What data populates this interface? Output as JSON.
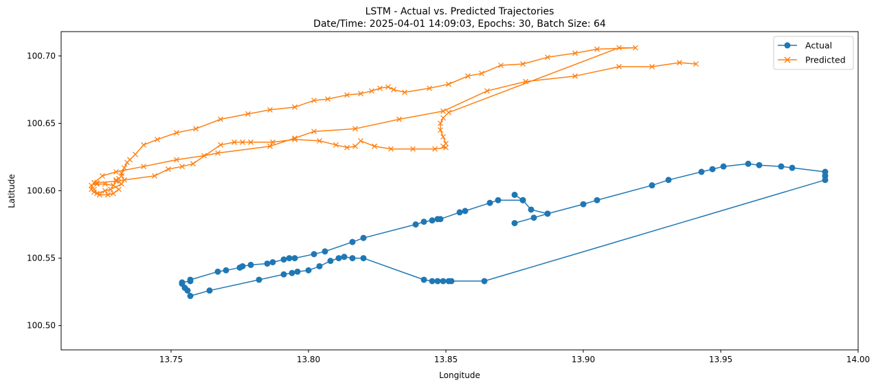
{
  "chart_data": {
    "type": "line",
    "title": "LSTM - Actual vs. Predicted Trajectories",
    "subtitle": "Date/Time: 2025-04-01 14:09:03, Epochs: 30, Batch Size: 64",
    "xlabel": "Longitude",
    "ylabel": "Latitude",
    "xlim": [
      13.71,
      14.0
    ],
    "ylim": [
      100.482,
      100.718
    ],
    "xticks": [
      "13.75",
      "13.80",
      "13.85",
      "13.90",
      "13.95",
      "14.00"
    ],
    "yticks": [
      "100.50",
      "100.55",
      "100.60",
      "100.65",
      "100.70"
    ],
    "grid": false,
    "legend_position": "top-right",
    "series": [
      {
        "name": "Actual",
        "color": "#1f77b4",
        "marker": "circle",
        "points": [
          [
            13.875,
            100.576
          ],
          [
            13.882,
            100.58
          ],
          [
            13.887,
            100.583
          ],
          [
            13.9,
            100.59
          ],
          [
            13.905,
            100.593
          ],
          [
            13.925,
            100.604
          ],
          [
            13.931,
            100.608
          ],
          [
            13.943,
            100.614
          ],
          [
            13.947,
            100.616
          ],
          [
            13.951,
            100.618
          ],
          [
            13.96,
            100.62
          ],
          [
            13.964,
            100.619
          ],
          [
            13.972,
            100.618
          ],
          [
            13.976,
            100.617
          ],
          [
            13.988,
            100.614
          ],
          [
            13.988,
            100.611
          ],
          [
            13.988,
            100.608
          ],
          [
            13.864,
            100.533
          ],
          [
            13.852,
            100.533
          ],
          [
            13.851,
            100.533
          ],
          [
            13.849,
            100.533
          ],
          [
            13.847,
            100.533
          ],
          [
            13.845,
            100.533
          ],
          [
            13.842,
            100.534
          ],
          [
            13.82,
            100.55
          ],
          [
            13.816,
            100.55
          ],
          [
            13.813,
            100.551
          ],
          [
            13.811,
            100.55
          ],
          [
            13.808,
            100.548
          ],
          [
            13.804,
            100.544
          ],
          [
            13.8,
            100.541
          ],
          [
            13.796,
            100.54
          ],
          [
            13.794,
            100.539
          ],
          [
            13.791,
            100.538
          ],
          [
            13.782,
            100.534
          ],
          [
            13.764,
            100.526
          ],
          [
            13.757,
            100.522
          ],
          [
            13.756,
            100.526
          ],
          [
            13.755,
            100.528
          ],
          [
            13.754,
            100.531
          ],
          [
            13.754,
            100.532
          ],
          [
            13.757,
            100.533
          ],
          [
            13.757,
            100.534
          ],
          [
            13.767,
            100.54
          ],
          [
            13.77,
            100.541
          ],
          [
            13.775,
            100.543
          ],
          [
            13.776,
            100.544
          ],
          [
            13.779,
            100.545
          ],
          [
            13.785,
            100.546
          ],
          [
            13.787,
            100.547
          ],
          [
            13.791,
            100.549
          ],
          [
            13.793,
            100.55
          ],
          [
            13.795,
            100.55
          ],
          [
            13.802,
            100.553
          ],
          [
            13.806,
            100.555
          ],
          [
            13.816,
            100.562
          ],
          [
            13.82,
            100.565
          ],
          [
            13.839,
            100.575
          ],
          [
            13.842,
            100.577
          ],
          [
            13.845,
            100.578
          ],
          [
            13.847,
            100.579
          ],
          [
            13.848,
            100.579
          ],
          [
            13.855,
            100.584
          ],
          [
            13.857,
            100.585
          ],
          [
            13.866,
            100.591
          ],
          [
            13.869,
            100.593
          ],
          [
            13.878,
            100.593
          ],
          [
            13.875,
            100.597
          ],
          [
            13.878,
            100.593
          ],
          [
            13.881,
            100.586
          ],
          [
            13.887,
            100.583
          ]
        ]
      },
      {
        "name": "Predicted",
        "color": "#ff7f0e",
        "marker": "x",
        "points": [
          [
            13.941,
            100.694
          ],
          [
            13.935,
            100.695
          ],
          [
            13.925,
            100.692
          ],
          [
            13.913,
            100.692
          ],
          [
            13.897,
            100.685
          ],
          [
            13.879,
            100.681
          ],
          [
            13.865,
            100.674
          ],
          [
            13.849,
            100.659
          ],
          [
            13.833,
            100.653
          ],
          [
            13.817,
            100.646
          ],
          [
            13.802,
            100.644
          ],
          [
            13.795,
            100.639
          ],
          [
            13.786,
            100.633
          ],
          [
            13.767,
            100.628
          ],
          [
            13.762,
            100.626
          ],
          [
            13.752,
            100.623
          ],
          [
            13.74,
            100.618
          ],
          [
            13.73,
            100.614
          ],
          [
            13.725,
            100.611
          ],
          [
            13.722,
            100.606
          ],
          [
            13.723,
            100.605
          ],
          [
            13.726,
            100.605
          ],
          [
            13.729,
            100.604
          ],
          [
            13.731,
            100.601
          ],
          [
            13.729,
            100.598
          ],
          [
            13.727,
            100.597
          ],
          [
            13.724,
            100.597
          ],
          [
            13.722,
            100.599
          ],
          [
            13.721,
            100.601
          ],
          [
            13.721,
            100.604
          ],
          [
            13.723,
            100.606
          ],
          [
            13.73,
            100.607
          ],
          [
            13.733,
            100.608
          ],
          [
            13.744,
            100.611
          ],
          [
            13.749,
            100.616
          ],
          [
            13.754,
            100.618
          ],
          [
            13.758,
            100.62
          ],
          [
            13.768,
            100.634
          ],
          [
            13.773,
            100.636
          ],
          [
            13.776,
            100.636
          ],
          [
            13.779,
            100.636
          ],
          [
            13.787,
            100.636
          ],
          [
            13.795,
            100.638
          ],
          [
            13.804,
            100.637
          ],
          [
            13.81,
            100.634
          ],
          [
            13.814,
            100.632
          ],
          [
            13.817,
            100.633
          ],
          [
            13.819,
            100.637
          ],
          [
            13.824,
            100.633
          ],
          [
            13.83,
            100.631
          ],
          [
            13.838,
            100.631
          ],
          [
            13.846,
            100.631
          ],
          [
            13.85,
            100.632
          ],
          [
            13.849,
            100.633
          ],
          [
            13.85,
            100.635
          ],
          [
            13.849,
            100.64
          ],
          [
            13.848,
            100.645
          ],
          [
            13.848,
            100.65
          ],
          [
            13.849,
            100.654
          ],
          [
            13.851,
            100.658
          ],
          [
            13.913,
            100.706
          ],
          [
            13.919,
            100.706
          ],
          [
            13.905,
            100.705
          ],
          [
            13.897,
            100.702
          ],
          [
            13.887,
            100.699
          ],
          [
            13.878,
            100.694
          ],
          [
            13.87,
            100.693
          ],
          [
            13.863,
            100.687
          ],
          [
            13.858,
            100.685
          ],
          [
            13.851,
            100.679
          ],
          [
            13.844,
            100.676
          ],
          [
            13.835,
            100.673
          ],
          [
            13.831,
            100.675
          ],
          [
            13.829,
            100.677
          ],
          [
            13.826,
            100.676
          ],
          [
            13.823,
            100.674
          ],
          [
            13.819,
            100.672
          ],
          [
            13.814,
            100.671
          ],
          [
            13.807,
            100.668
          ],
          [
            13.802,
            100.667
          ],
          [
            13.795,
            100.662
          ],
          [
            13.786,
            100.66
          ],
          [
            13.778,
            100.657
          ],
          [
            13.768,
            100.653
          ],
          [
            13.759,
            100.646
          ],
          [
            13.752,
            100.643
          ],
          [
            13.745,
            100.638
          ],
          [
            13.74,
            100.634
          ],
          [
            13.737,
            100.627
          ],
          [
            13.735,
            100.623
          ],
          [
            13.734,
            100.621
          ],
          [
            13.733,
            100.617
          ],
          [
            13.732,
            100.613
          ],
          [
            13.732,
            100.611
          ],
          [
            13.731,
            100.609
          ],
          [
            13.73,
            100.608
          ],
          [
            13.732,
            100.605
          ],
          [
            13.728,
            100.601
          ],
          [
            13.726,
            100.6
          ],
          [
            13.723,
            100.598
          ],
          [
            13.722,
            100.601
          ]
        ]
      }
    ]
  }
}
